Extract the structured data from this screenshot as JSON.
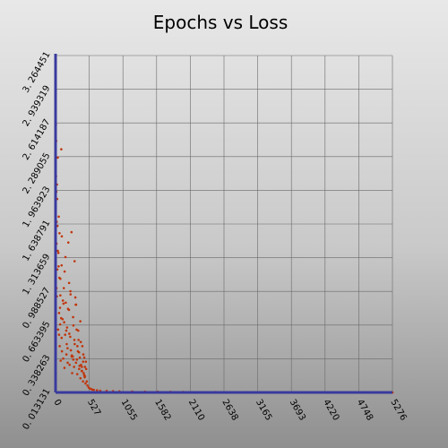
{
  "chart_data": {
    "type": "scatter",
    "title": "Epochs vs Loss",
    "xlabel": "",
    "ylabel": "",
    "xlim": [
      0,
      5276
    ],
    "ylim": [
      0.013131,
      3.264451
    ],
    "x_ticks": [
      "0",
      "527",
      "1055",
      "1582",
      "2110",
      "2638",
      "3165",
      "3693",
      "4220",
      "4748",
      "5276"
    ],
    "y_ticks": [
      "0. 013131",
      "0. 338263",
      "0. 663395",
      "0. 988527",
      "1. 313659",
      "1. 638791",
      "1. 963923",
      "2. 289055",
      "2. 614187",
      "2. 939319",
      "3. 264451"
    ],
    "grid": true,
    "legend": "none",
    "colors": {
      "points": "#c0360c",
      "axis": "#3a3a9e",
      "grid": "#6a6a6a"
    },
    "series": [
      {
        "x": [
          2,
          4,
          6,
          8,
          10,
          12,
          15,
          18,
          20,
          25,
          28,
          30,
          35,
          40,
          45,
          50,
          55,
          60,
          65,
          70,
          75,
          80,
          90,
          95,
          100,
          110,
          120,
          130,
          140,
          150,
          160,
          170,
          180,
          190,
          200,
          210,
          220,
          230,
          240,
          250,
          260,
          270,
          280,
          290,
          300,
          310,
          320,
          330,
          340,
          350,
          360,
          370,
          380,
          390,
          400,
          410,
          420,
          430,
          440,
          450,
          460,
          470,
          480,
          490,
          500,
          520,
          540,
          560,
          580,
          600,
          650,
          700,
          800,
          900,
          1000,
          1200,
          1400,
          1600,
          1800,
          2000,
          2500,
          3000,
          3500,
          4000,
          4500,
          5000,
          5276,
          15,
          35,
          55,
          75,
          95,
          115,
          135,
          155,
          175,
          195,
          215,
          235,
          255,
          275,
          295,
          315,
          335,
          355,
          375,
          395,
          415,
          435,
          455,
          475,
          62,
          88,
          142,
          188,
          233,
          278,
          322,
          368,
          412,
          448,
          22,
          48,
          72,
          98,
          125,
          168,
          212,
          252,
          298,
          342,
          388,
          432,
          460
        ],
        "y": [
          3.22,
          2.93,
          2.6,
          2.1,
          2.44,
          1.95,
          1.45,
          1.66,
          0.94,
          1.88,
          1.2,
          1.62,
          2.28,
          0.62,
          1.36,
          1.71,
          0.57,
          1.12,
          0.46,
          0.83,
          0.95,
          0.32,
          2.36,
          1.24,
          0.41,
          0.72,
          0.34,
          1.02,
          0.25,
          0.57,
          0.88,
          0.38,
          0.64,
          0.3,
          1.46,
          0.81,
          0.28,
          0.55,
          0.42,
          1.56,
          0.2,
          0.36,
          0.66,
          0.26,
          0.48,
          0.93,
          0.3,
          0.62,
          0.19,
          0.41,
          0.52,
          0.24,
          0.35,
          0.15,
          0.28,
          0.22,
          0.46,
          0.12,
          0.2,
          0.35,
          0.17,
          0.1,
          0.24,
          0.12,
          0.08,
          0.06,
          0.05,
          0.045,
          0.04,
          0.038,
          0.034,
          0.03,
          0.028,
          0.026,
          0.024,
          0.022,
          0.021,
          0.02,
          0.019,
          0.018,
          0.017,
          0.016,
          0.015,
          0.015,
          0.014,
          0.014,
          0.013,
          1.02,
          1.38,
          0.78,
          1.11,
          0.54,
          0.9,
          0.69,
          1.32,
          0.48,
          0.82,
          0.58,
          0.96,
          0.37,
          0.74,
          0.52,
          0.86,
          0.33,
          0.61,
          0.27,
          0.5,
          0.22,
          0.38,
          0.16,
          0.31,
          1.55,
          0.73,
          1.18,
          0.44,
          0.99,
          0.33,
          0.86,
          0.4,
          0.26,
          0.18,
          2.02,
          1.23,
          0.67,
          1.52,
          0.87,
          0.61,
          1.07,
          0.36,
          1.28,
          0.46,
          0.7,
          0.31,
          0.26
        ]
      }
    ]
  }
}
